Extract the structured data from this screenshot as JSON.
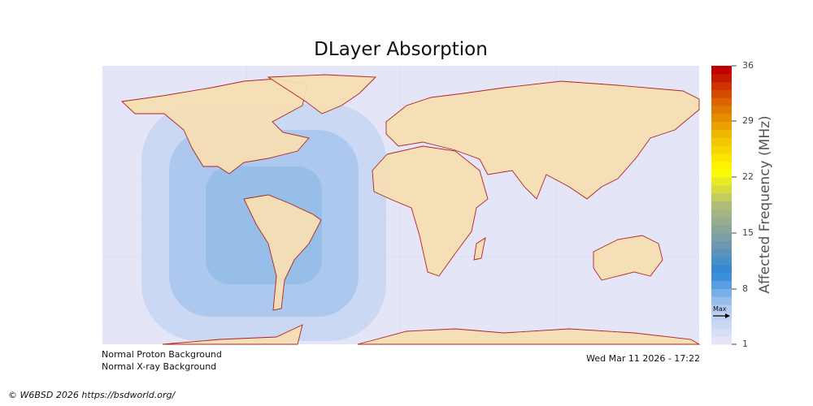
{
  "title": "DLayer Absorption",
  "map": {
    "ocean_color": "#e5e5f8",
    "land_color": "#f5deb3",
    "coast_color": "#b22222",
    "absorption_levels_mhz": [
      2,
      3,
      4
    ]
  },
  "colorbar": {
    "label": "Affected Frequency (MHz)",
    "min": 1,
    "max": 36,
    "ticks": [
      "36",
      "29",
      "22",
      "15",
      "8",
      "1"
    ],
    "max_marker_label": "Max",
    "max_marker_value": 5,
    "color_stops": [
      "#e5e5f8",
      "#aec9ef",
      "#2a88d8",
      "#7b9ca8",
      "#b0bc78",
      "#ffff00",
      "#f0c000",
      "#dd6a00",
      "#c00000"
    ]
  },
  "status": {
    "proton": "Normal Proton Background",
    "xray": "Normal X-ray Background",
    "timestamp": "Wed Mar 11 2026 - 17:22"
  },
  "footer": "© W6BSD 2026 https://bsdworld.org/"
}
